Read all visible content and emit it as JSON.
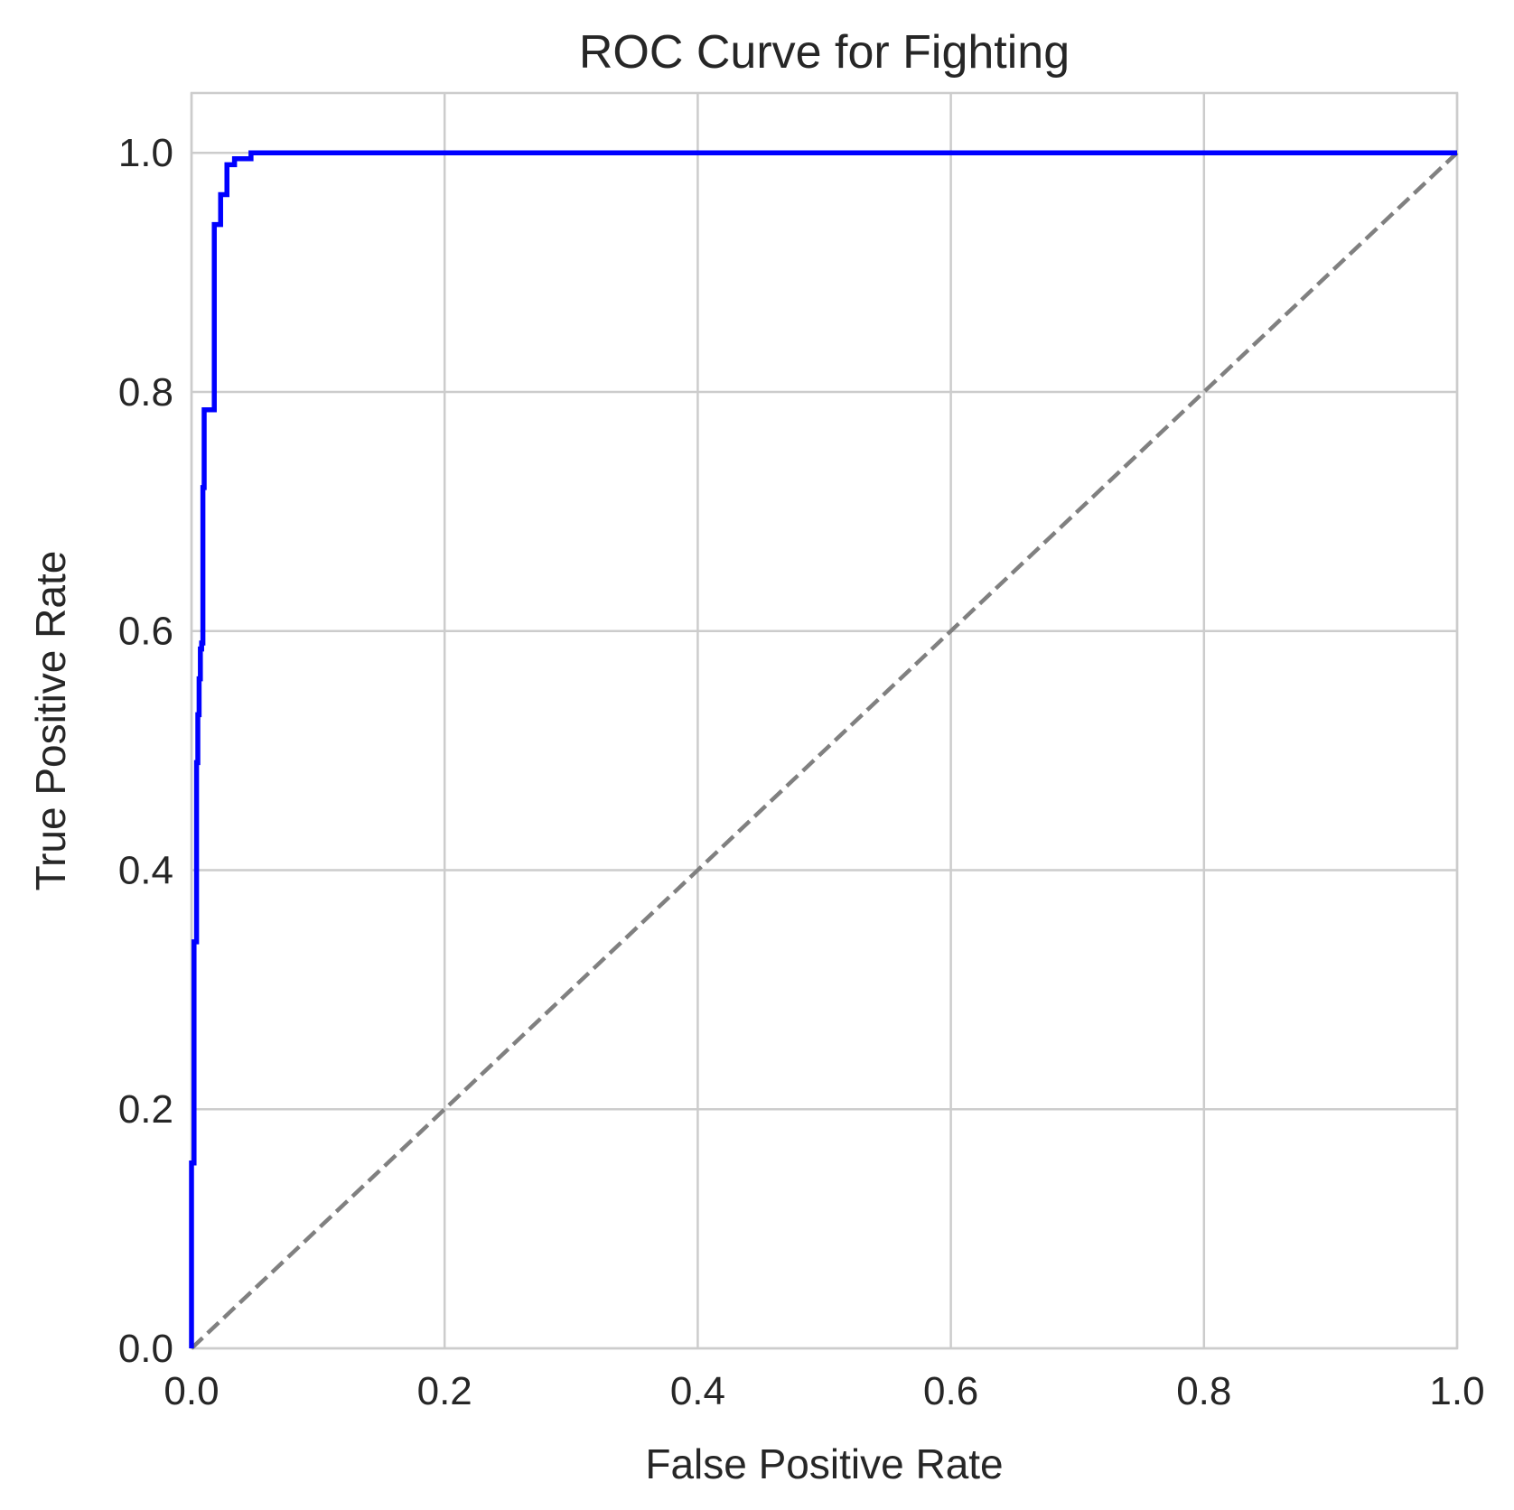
{
  "chart_data": {
    "type": "line",
    "title": "ROC Curve for Fighting",
    "xlabel": "False Positive Rate",
    "ylabel": "True Positive Rate",
    "xlim": [
      0.0,
      1.0
    ],
    "ylim": [
      0.0,
      1.05
    ],
    "xticks": [
      "0.0",
      "0.2",
      "0.4",
      "0.6",
      "0.8",
      "1.0"
    ],
    "yticks": [
      "0.0",
      "0.2",
      "0.4",
      "0.6",
      "0.8",
      "1.0"
    ],
    "grid": true,
    "series": [
      {
        "color": "#0000ff",
        "style": "solid",
        "x": [
          0.0,
          0.0,
          0.002,
          0.002,
          0.004,
          0.004,
          0.005,
          0.005,
          0.006,
          0.006,
          0.007,
          0.007,
          0.008,
          0.008,
          0.009,
          0.009,
          0.01,
          0.01,
          0.011,
          0.011,
          0.018,
          0.018,
          0.023,
          0.023,
          0.028,
          0.028,
          0.034,
          0.034,
          0.047,
          0.047,
          1.0
        ],
        "y": [
          0.0,
          0.155,
          0.155,
          0.34,
          0.34,
          0.49,
          0.49,
          0.53,
          0.53,
          0.56,
          0.56,
          0.585,
          0.585,
          0.59,
          0.59,
          0.72,
          0.72,
          0.785,
          0.785,
          0.785,
          0.785,
          0.94,
          0.94,
          0.965,
          0.965,
          0.99,
          0.99,
          0.995,
          0.995,
          1.0,
          1.0
        ]
      },
      {
        "color": "#808080",
        "style": "dashed",
        "x": [
          0.0,
          1.0
        ],
        "y": [
          0.0,
          1.0
        ]
      }
    ]
  }
}
